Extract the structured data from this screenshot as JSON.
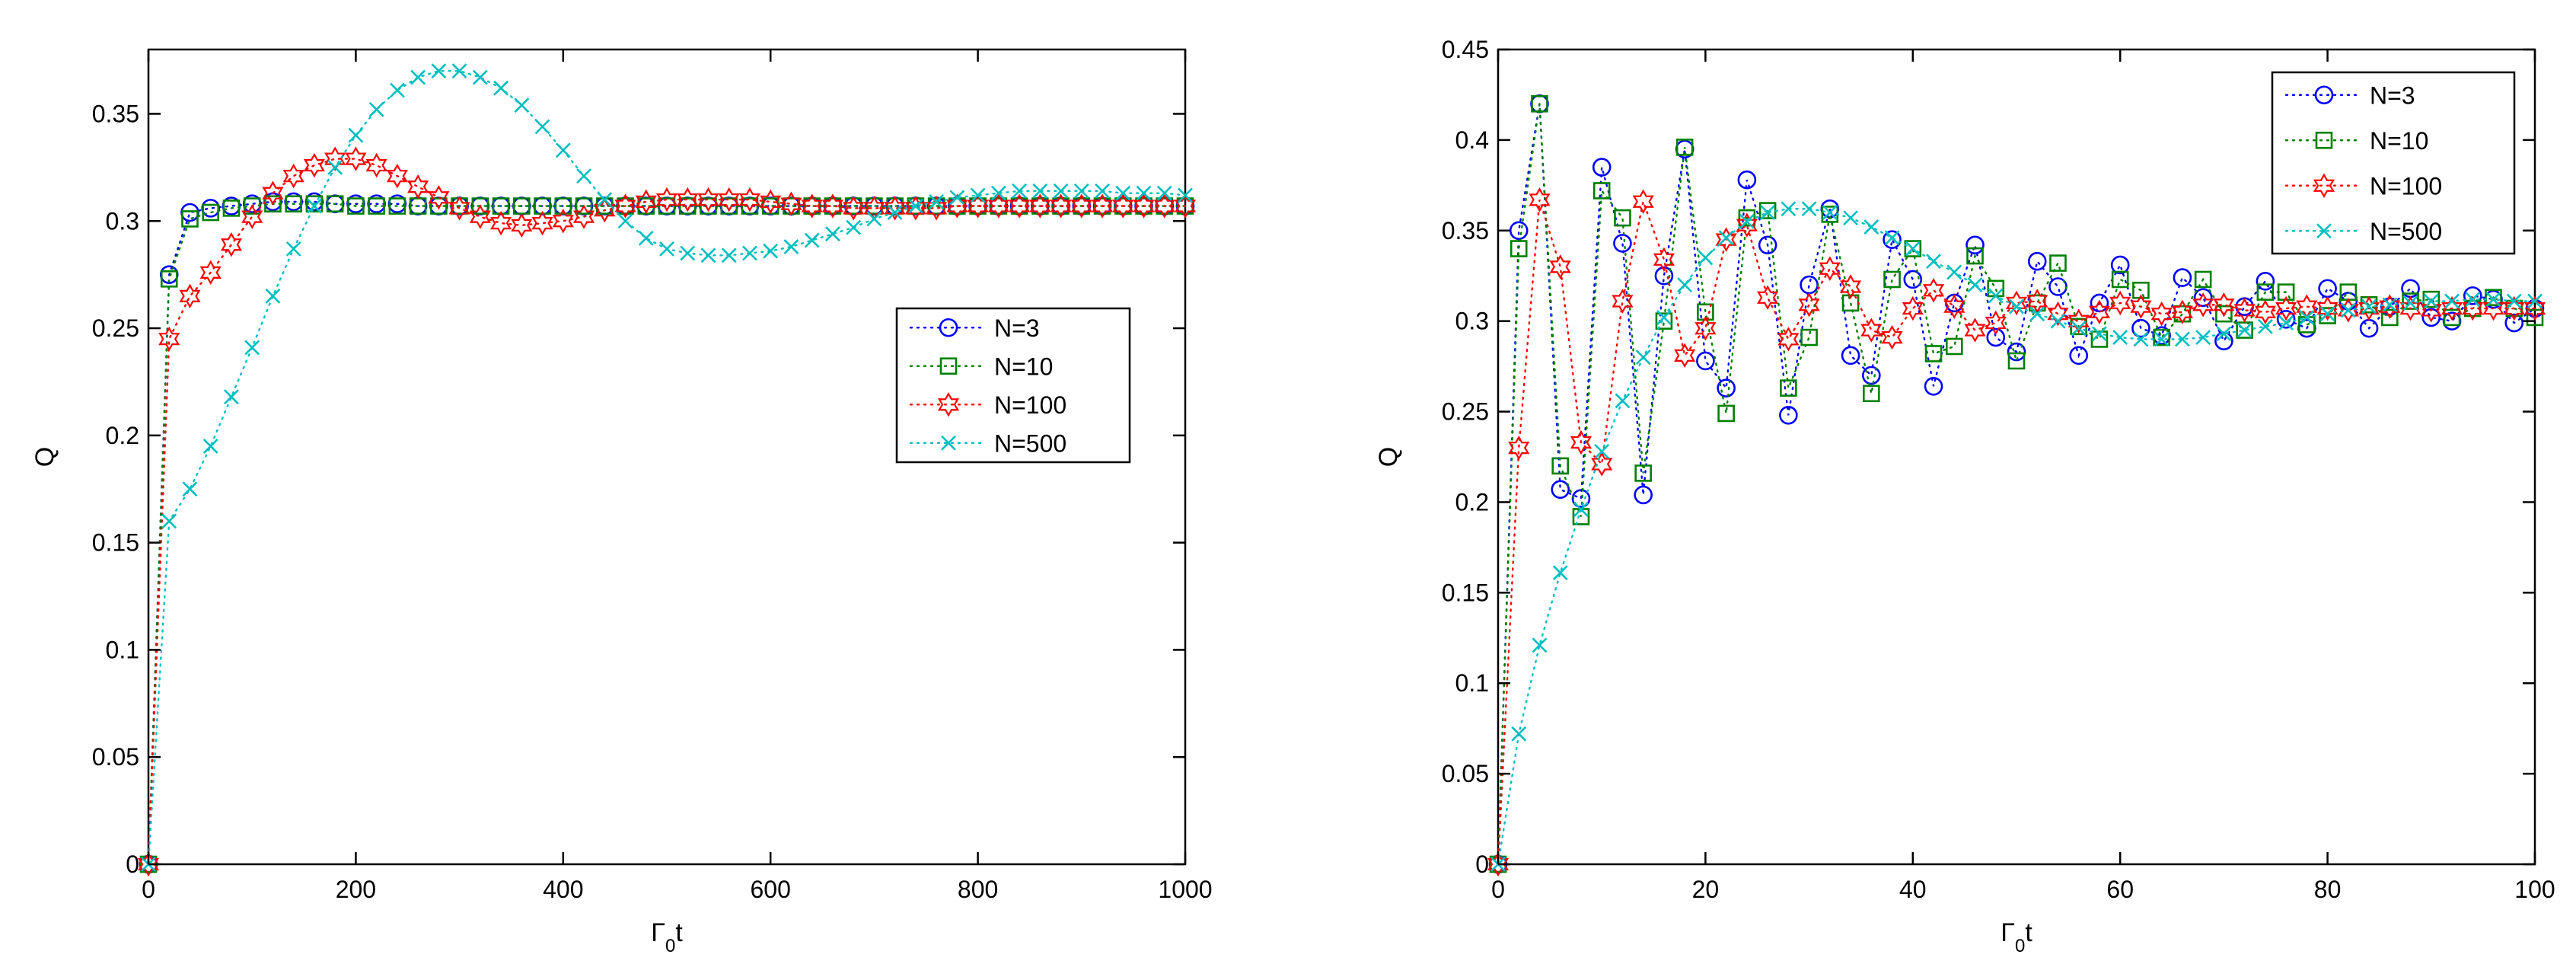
{
  "chart_data": [
    {
      "type": "scatter",
      "xlabel": "Γ0t",
      "ylabel": "Q",
      "xlim": [
        0,
        1000
      ],
      "ylim": [
        0,
        0.38
      ],
      "xticks": [
        0,
        200,
        400,
        600,
        800,
        1000
      ],
      "xtick_labels": [
        "0",
        "200",
        "400",
        "600",
        "800",
        "1000"
      ],
      "yticks": [
        0,
        0.05,
        0.1,
        0.15,
        0.2,
        0.25,
        0.3,
        0.35
      ],
      "ytick_labels": [
        "0",
        "0.05",
        "0.1",
        "0.15",
        "0.2",
        "0.25",
        "0.3",
        "0.35"
      ],
      "grid": false,
      "legend_position": "center-right",
      "series": [
        {
          "name": "N=3",
          "color": "#0000ff",
          "marker": "circle",
          "x": [
            0,
            20,
            40,
            60,
            80,
            100,
            120,
            140,
            160,
            180,
            200,
            220,
            240,
            260,
            280,
            300,
            320,
            340,
            360,
            380,
            400,
            420,
            440,
            460,
            480,
            500,
            520,
            540,
            560,
            580,
            600,
            620,
            640,
            660,
            680,
            700,
            720,
            740,
            760,
            780,
            800,
            820,
            840,
            860,
            880,
            900,
            920,
            940,
            960,
            980,
            1000
          ],
          "y": [
            0,
            0.275,
            0.304,
            0.306,
            0.307,
            0.308,
            0.309,
            0.309,
            0.309,
            0.308,
            0.308,
            0.308,
            0.308,
            0.307,
            0.307,
            0.307,
            0.307,
            0.307,
            0.307,
            0.307,
            0.307,
            0.307,
            0.307,
            0.307,
            0.307,
            0.307,
            0.307,
            0.307,
            0.307,
            0.307,
            0.307,
            0.307,
            0.307,
            0.307,
            0.307,
            0.307,
            0.307,
            0.307,
            0.307,
            0.307,
            0.307,
            0.307,
            0.307,
            0.307,
            0.307,
            0.307,
            0.307,
            0.307,
            0.307,
            0.307,
            0.307
          ]
        },
        {
          "name": "N=10",
          "color": "#008000",
          "marker": "square",
          "x": [
            0,
            20,
            40,
            60,
            80,
            100,
            120,
            140,
            160,
            180,
            200,
            220,
            240,
            260,
            280,
            300,
            320,
            340,
            360,
            380,
            400,
            420,
            440,
            460,
            480,
            500,
            520,
            540,
            560,
            580,
            600,
            620,
            640,
            660,
            680,
            700,
            720,
            740,
            760,
            780,
            800,
            820,
            840,
            860,
            880,
            900,
            920,
            940,
            960,
            980,
            1000
          ],
          "y": [
            0,
            0.273,
            0.301,
            0.304,
            0.306,
            0.307,
            0.308,
            0.308,
            0.308,
            0.308,
            0.307,
            0.307,
            0.307,
            0.307,
            0.307,
            0.307,
            0.307,
            0.307,
            0.307,
            0.307,
            0.307,
            0.307,
            0.307,
            0.307,
            0.307,
            0.307,
            0.307,
            0.307,
            0.307,
            0.307,
            0.307,
            0.307,
            0.307,
            0.307,
            0.307,
            0.307,
            0.307,
            0.307,
            0.307,
            0.307,
            0.307,
            0.307,
            0.307,
            0.307,
            0.307,
            0.307,
            0.307,
            0.307,
            0.307,
            0.307,
            0.307
          ]
        },
        {
          "name": "N=100",
          "color": "#ff0000",
          "marker": "hexagram",
          "x": [
            0,
            20,
            40,
            60,
            80,
            100,
            120,
            140,
            160,
            180,
            200,
            220,
            240,
            260,
            280,
            300,
            320,
            340,
            360,
            380,
            400,
            420,
            440,
            460,
            480,
            500,
            520,
            540,
            560,
            580,
            600,
            620,
            640,
            660,
            680,
            700,
            720,
            740,
            760,
            780,
            800,
            820,
            840,
            860,
            880,
            900,
            920,
            940,
            960,
            980,
            1000
          ],
          "y": [
            0,
            0.245,
            0.265,
            0.276,
            0.289,
            0.302,
            0.313,
            0.321,
            0.326,
            0.329,
            0.329,
            0.326,
            0.321,
            0.316,
            0.311,
            0.306,
            0.302,
            0.299,
            0.298,
            0.299,
            0.3,
            0.302,
            0.305,
            0.307,
            0.309,
            0.31,
            0.31,
            0.31,
            0.31,
            0.31,
            0.309,
            0.308,
            0.307,
            0.307,
            0.306,
            0.306,
            0.306,
            0.306,
            0.306,
            0.307,
            0.307,
            0.307,
            0.307,
            0.307,
            0.307,
            0.307,
            0.307,
            0.307,
            0.307,
            0.307,
            0.307
          ]
        },
        {
          "name": "N=500",
          "color": "#00bfbf",
          "marker": "x",
          "x": [
            0,
            20,
            40,
            60,
            80,
            100,
            120,
            140,
            160,
            180,
            200,
            220,
            240,
            260,
            280,
            300,
            320,
            340,
            360,
            380,
            400,
            420,
            440,
            460,
            480,
            500,
            520,
            540,
            560,
            580,
            600,
            620,
            640,
            660,
            680,
            700,
            720,
            740,
            760,
            780,
            800,
            820,
            840,
            860,
            880,
            900,
            920,
            940,
            960,
            980,
            1000
          ],
          "y": [
            0,
            0.16,
            0.175,
            0.195,
            0.218,
            0.241,
            0.265,
            0.287,
            0.307,
            0.325,
            0.34,
            0.352,
            0.361,
            0.367,
            0.37,
            0.37,
            0.367,
            0.362,
            0.354,
            0.344,
            0.333,
            0.321,
            0.31,
            0.3,
            0.292,
            0.287,
            0.285,
            0.284,
            0.284,
            0.285,
            0.286,
            0.288,
            0.291,
            0.294,
            0.297,
            0.301,
            0.304,
            0.307,
            0.309,
            0.311,
            0.312,
            0.313,
            0.314,
            0.314,
            0.314,
            0.314,
            0.314,
            0.313,
            0.313,
            0.313,
            0.312
          ]
        }
      ]
    },
    {
      "type": "scatter",
      "xlabel": "Γ0t",
      "ylabel": "Q",
      "xlim": [
        0,
        100
      ],
      "ylim": [
        0,
        0.45
      ],
      "xticks": [
        0,
        20,
        40,
        60,
        80,
        100
      ],
      "xtick_labels": [
        "0",
        "20",
        "40",
        "60",
        "80",
        "100"
      ],
      "yticks": [
        0,
        0.05,
        0.1,
        0.15,
        0.2,
        0.25,
        0.3,
        0.35,
        0.4,
        0.45
      ],
      "ytick_labels": [
        "0",
        "0.05",
        "0.1",
        "0.15",
        "0.2",
        "0.25",
        "0.3",
        "0.35",
        "0.4",
        "0.45"
      ],
      "grid": false,
      "legend_position": "top-right",
      "series": [
        {
          "name": "N=3",
          "color": "#0000ff",
          "marker": "circle",
          "x": [
            0,
            2,
            4,
            6,
            8,
            10,
            12,
            14,
            16,
            18,
            20,
            22,
            24,
            26,
            28,
            30,
            32,
            34,
            36,
            38,
            40,
            42,
            44,
            46,
            48,
            50,
            52,
            54,
            56,
            58,
            60,
            62,
            64,
            66,
            68,
            70,
            72,
            74,
            76,
            78,
            80,
            82,
            84,
            86,
            88,
            90,
            92,
            94,
            96,
            98,
            100
          ],
          "y": [
            0,
            0.35,
            0.42,
            0.207,
            0.202,
            0.385,
            0.343,
            0.204,
            0.325,
            0.395,
            0.278,
            0.263,
            0.378,
            0.342,
            0.248,
            0.32,
            0.362,
            0.281,
            0.27,
            0.345,
            0.323,
            0.264,
            0.31,
            0.342,
            0.291,
            0.283,
            0.333,
            0.319,
            0.281,
            0.31,
            0.331,
            0.296,
            0.292,
            0.324,
            0.313,
            0.289,
            0.308,
            0.322,
            0.301,
            0.296,
            0.318,
            0.311,
            0.296,
            0.308,
            0.318,
            0.302,
            0.3,
            0.314,
            0.312,
            0.299,
            0.307
          ]
        },
        {
          "name": "N=10",
          "color": "#008000",
          "marker": "square",
          "x": [
            0,
            2,
            4,
            6,
            8,
            10,
            12,
            14,
            16,
            18,
            20,
            22,
            24,
            26,
            28,
            30,
            32,
            34,
            36,
            38,
            40,
            42,
            44,
            46,
            48,
            50,
            52,
            54,
            56,
            58,
            60,
            62,
            64,
            66,
            68,
            70,
            72,
            74,
            76,
            78,
            80,
            82,
            84,
            86,
            88,
            90,
            92,
            94,
            96,
            98,
            100
          ],
          "y": [
            0,
            0.34,
            0.42,
            0.22,
            0.192,
            0.372,
            0.357,
            0.216,
            0.3,
            0.396,
            0.305,
            0.249,
            0.357,
            0.361,
            0.263,
            0.291,
            0.359,
            0.31,
            0.26,
            0.323,
            0.34,
            0.282,
            0.286,
            0.336,
            0.318,
            0.278,
            0.31,
            0.332,
            0.297,
            0.29,
            0.323,
            0.317,
            0.291,
            0.304,
            0.323,
            0.304,
            0.295,
            0.316,
            0.316,
            0.298,
            0.303,
            0.316,
            0.309,
            0.302,
            0.311,
            0.312,
            0.302,
            0.307,
            0.313,
            0.307,
            0.302
          ]
        },
        {
          "name": "N=100",
          "color": "#ff0000",
          "marker": "hexagram",
          "x": [
            0,
            2,
            4,
            6,
            8,
            10,
            12,
            14,
            16,
            18,
            20,
            22,
            24,
            26,
            28,
            30,
            32,
            34,
            36,
            38,
            40,
            42,
            44,
            46,
            48,
            50,
            52,
            54,
            56,
            58,
            60,
            62,
            64,
            66,
            68,
            70,
            72,
            74,
            76,
            78,
            80,
            82,
            84,
            86,
            88,
            90,
            92,
            94,
            96,
            98,
            100
          ],
          "y": [
            0,
            0.23,
            0.367,
            0.33,
            0.233,
            0.221,
            0.311,
            0.366,
            0.334,
            0.281,
            0.296,
            0.345,
            0.353,
            0.313,
            0.29,
            0.309,
            0.329,
            0.319,
            0.295,
            0.291,
            0.307,
            0.317,
            0.308,
            0.295,
            0.299,
            0.31,
            0.311,
            0.304,
            0.3,
            0.305,
            0.31,
            0.308,
            0.304,
            0.305,
            0.309,
            0.309,
            0.306,
            0.305,
            0.307,
            0.308,
            0.307,
            0.306,
            0.307,
            0.308,
            0.307,
            0.306,
            0.307,
            0.307,
            0.307,
            0.307,
            0.307
          ]
        },
        {
          "name": "N=500",
          "color": "#00bfbf",
          "marker": "x",
          "x": [
            0,
            2,
            4,
            6,
            8,
            10,
            12,
            14,
            16,
            18,
            20,
            22,
            24,
            26,
            28,
            30,
            32,
            34,
            36,
            38,
            40,
            42,
            44,
            46,
            48,
            50,
            52,
            54,
            56,
            58,
            60,
            62,
            64,
            66,
            68,
            70,
            72,
            74,
            76,
            78,
            80,
            82,
            84,
            86,
            88,
            90,
            92,
            94,
            96,
            98,
            100
          ],
          "y": [
            0,
            0.072,
            0.121,
            0.161,
            0.196,
            0.228,
            0.256,
            0.28,
            0.302,
            0.32,
            0.335,
            0.346,
            0.355,
            0.36,
            0.362,
            0.362,
            0.36,
            0.357,
            0.352,
            0.346,
            0.34,
            0.333,
            0.327,
            0.32,
            0.314,
            0.308,
            0.304,
            0.3,
            0.296,
            0.293,
            0.291,
            0.29,
            0.29,
            0.29,
            0.291,
            0.293,
            0.295,
            0.297,
            0.299,
            0.302,
            0.304,
            0.306,
            0.308,
            0.309,
            0.31,
            0.311,
            0.311,
            0.312,
            0.312,
            0.311,
            0.311
          ]
        }
      ]
    }
  ]
}
